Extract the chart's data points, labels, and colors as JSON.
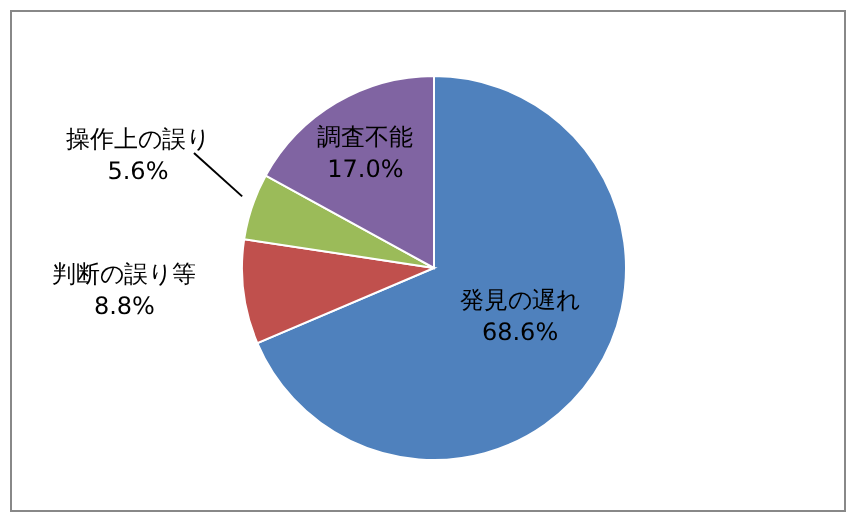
{
  "chart_data": {
    "type": "pie",
    "categories": [
      "発見の遅れ",
      "判断の誤り等",
      "操作上の誤り",
      "調査不能"
    ],
    "values": [
      68.6,
      8.8,
      5.6,
      17.0
    ],
    "value_labels": [
      "68.6%",
      "8.8%",
      "5.6%",
      "17.0%"
    ],
    "colors": [
      "#4f81bd",
      "#c0504d",
      "#9bbb59",
      "#8064a2"
    ],
    "legend": false
  }
}
